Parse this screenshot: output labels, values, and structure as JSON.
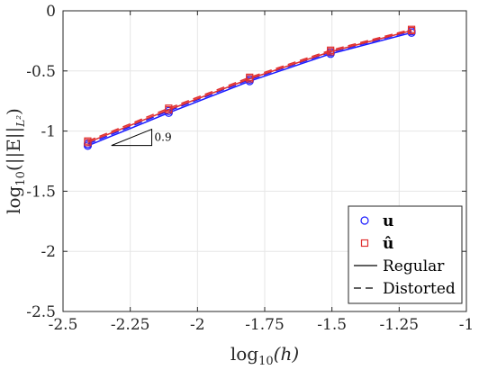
{
  "chart_data": {
    "type": "line",
    "title": "",
    "xlabel_prefix": "log",
    "xlabel_sub": "10",
    "xlabel_arg": "(h)",
    "ylabel_prefix": "log",
    "ylabel_sub": "10",
    "ylabel_arg": "(||E||",
    "ylabel_norm_sub": "L²",
    "ylabel_close": ")",
    "xlim": [
      -2.5,
      -1
    ],
    "ylim": [
      -2.5,
      0
    ],
    "xticks": [
      -2.5,
      -2.25,
      -2,
      -1.75,
      -1.5,
      -1.25,
      -1
    ],
    "xtick_labels": [
      "-2.5",
      "-2.25",
      "-2",
      "-1.75",
      "-1.5",
      "-1.25",
      "-1"
    ],
    "yticks": [
      0,
      -0.5,
      -1,
      -1.5,
      -2,
      -2.5
    ],
    "ytick_labels": [
      "0",
      "-0.5",
      "-1",
      "-1.5",
      "-2",
      "-2.5"
    ],
    "grid": true,
    "legend_position": "bottom-right",
    "colors": {
      "u": "#1a1aff",
      "uhat": "#e03030",
      "axis": "#262626",
      "grid": "#e6e6e6"
    },
    "x": [
      -2.408,
      -2.107,
      -1.806,
      -1.505,
      -1.204
    ],
    "series": [
      {
        "name": "u",
        "mesh": "regular",
        "marker": "circle",
        "values": [
          -1.122,
          -0.848,
          -0.585,
          -0.358,
          -0.182
        ]
      },
      {
        "name": "u",
        "mesh": "distorted",
        "marker": "circle",
        "values": [
          -1.108,
          -0.833,
          -0.572,
          -0.345,
          -0.17
        ]
      },
      {
        "name": "û",
        "mesh": "regular",
        "marker": "square",
        "values": [
          -1.095,
          -0.823,
          -0.565,
          -0.34,
          -0.165
        ]
      },
      {
        "name": "û",
        "mesh": "distorted",
        "marker": "square",
        "values": [
          -1.083,
          -0.81,
          -0.553,
          -0.328,
          -0.155
        ]
      }
    ],
    "legend": [
      {
        "label": "u",
        "kind": "circle"
      },
      {
        "label": "û",
        "kind": "square"
      },
      {
        "label": "Regular",
        "kind": "solid"
      },
      {
        "label": "Distorted",
        "kind": "dashed"
      }
    ],
    "slope_triangle": {
      "label": "0.9",
      "x0": -2.32,
      "x1": -2.17,
      "slope": 0.9
    }
  }
}
